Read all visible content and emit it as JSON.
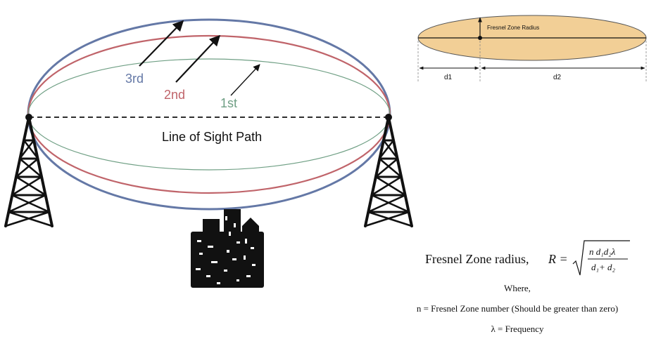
{
  "colors": {
    "zone_1": "#6f9f84",
    "zone_2": "#c0646a",
    "zone_3": "#6478a6",
    "ellipse_fill": "#f2cf96",
    "ink": "#111111"
  },
  "main_diagram": {
    "zone_labels": [
      "1st",
      "2nd",
      "3rd"
    ],
    "line_of_sight_label": "Line of Sight Path",
    "icons": [
      "left-tower-icon",
      "right-tower-icon",
      "city-buildings-icon"
    ]
  },
  "inset_diagram": {
    "radius_label": "Fresnel Zone Radius",
    "d1_label": "d1",
    "d2_label": "d2"
  },
  "formula": {
    "lead_text": "Fresnel Zone radius,",
    "symbol": "R =",
    "numerator": "n d₁d₂λ",
    "denominator": "d₁+ d₂",
    "where_label": "Where,",
    "n_definition": "n = Fresnel Zone number (Should be greater than zero)",
    "lambda_definition": "λ = Frequency"
  }
}
